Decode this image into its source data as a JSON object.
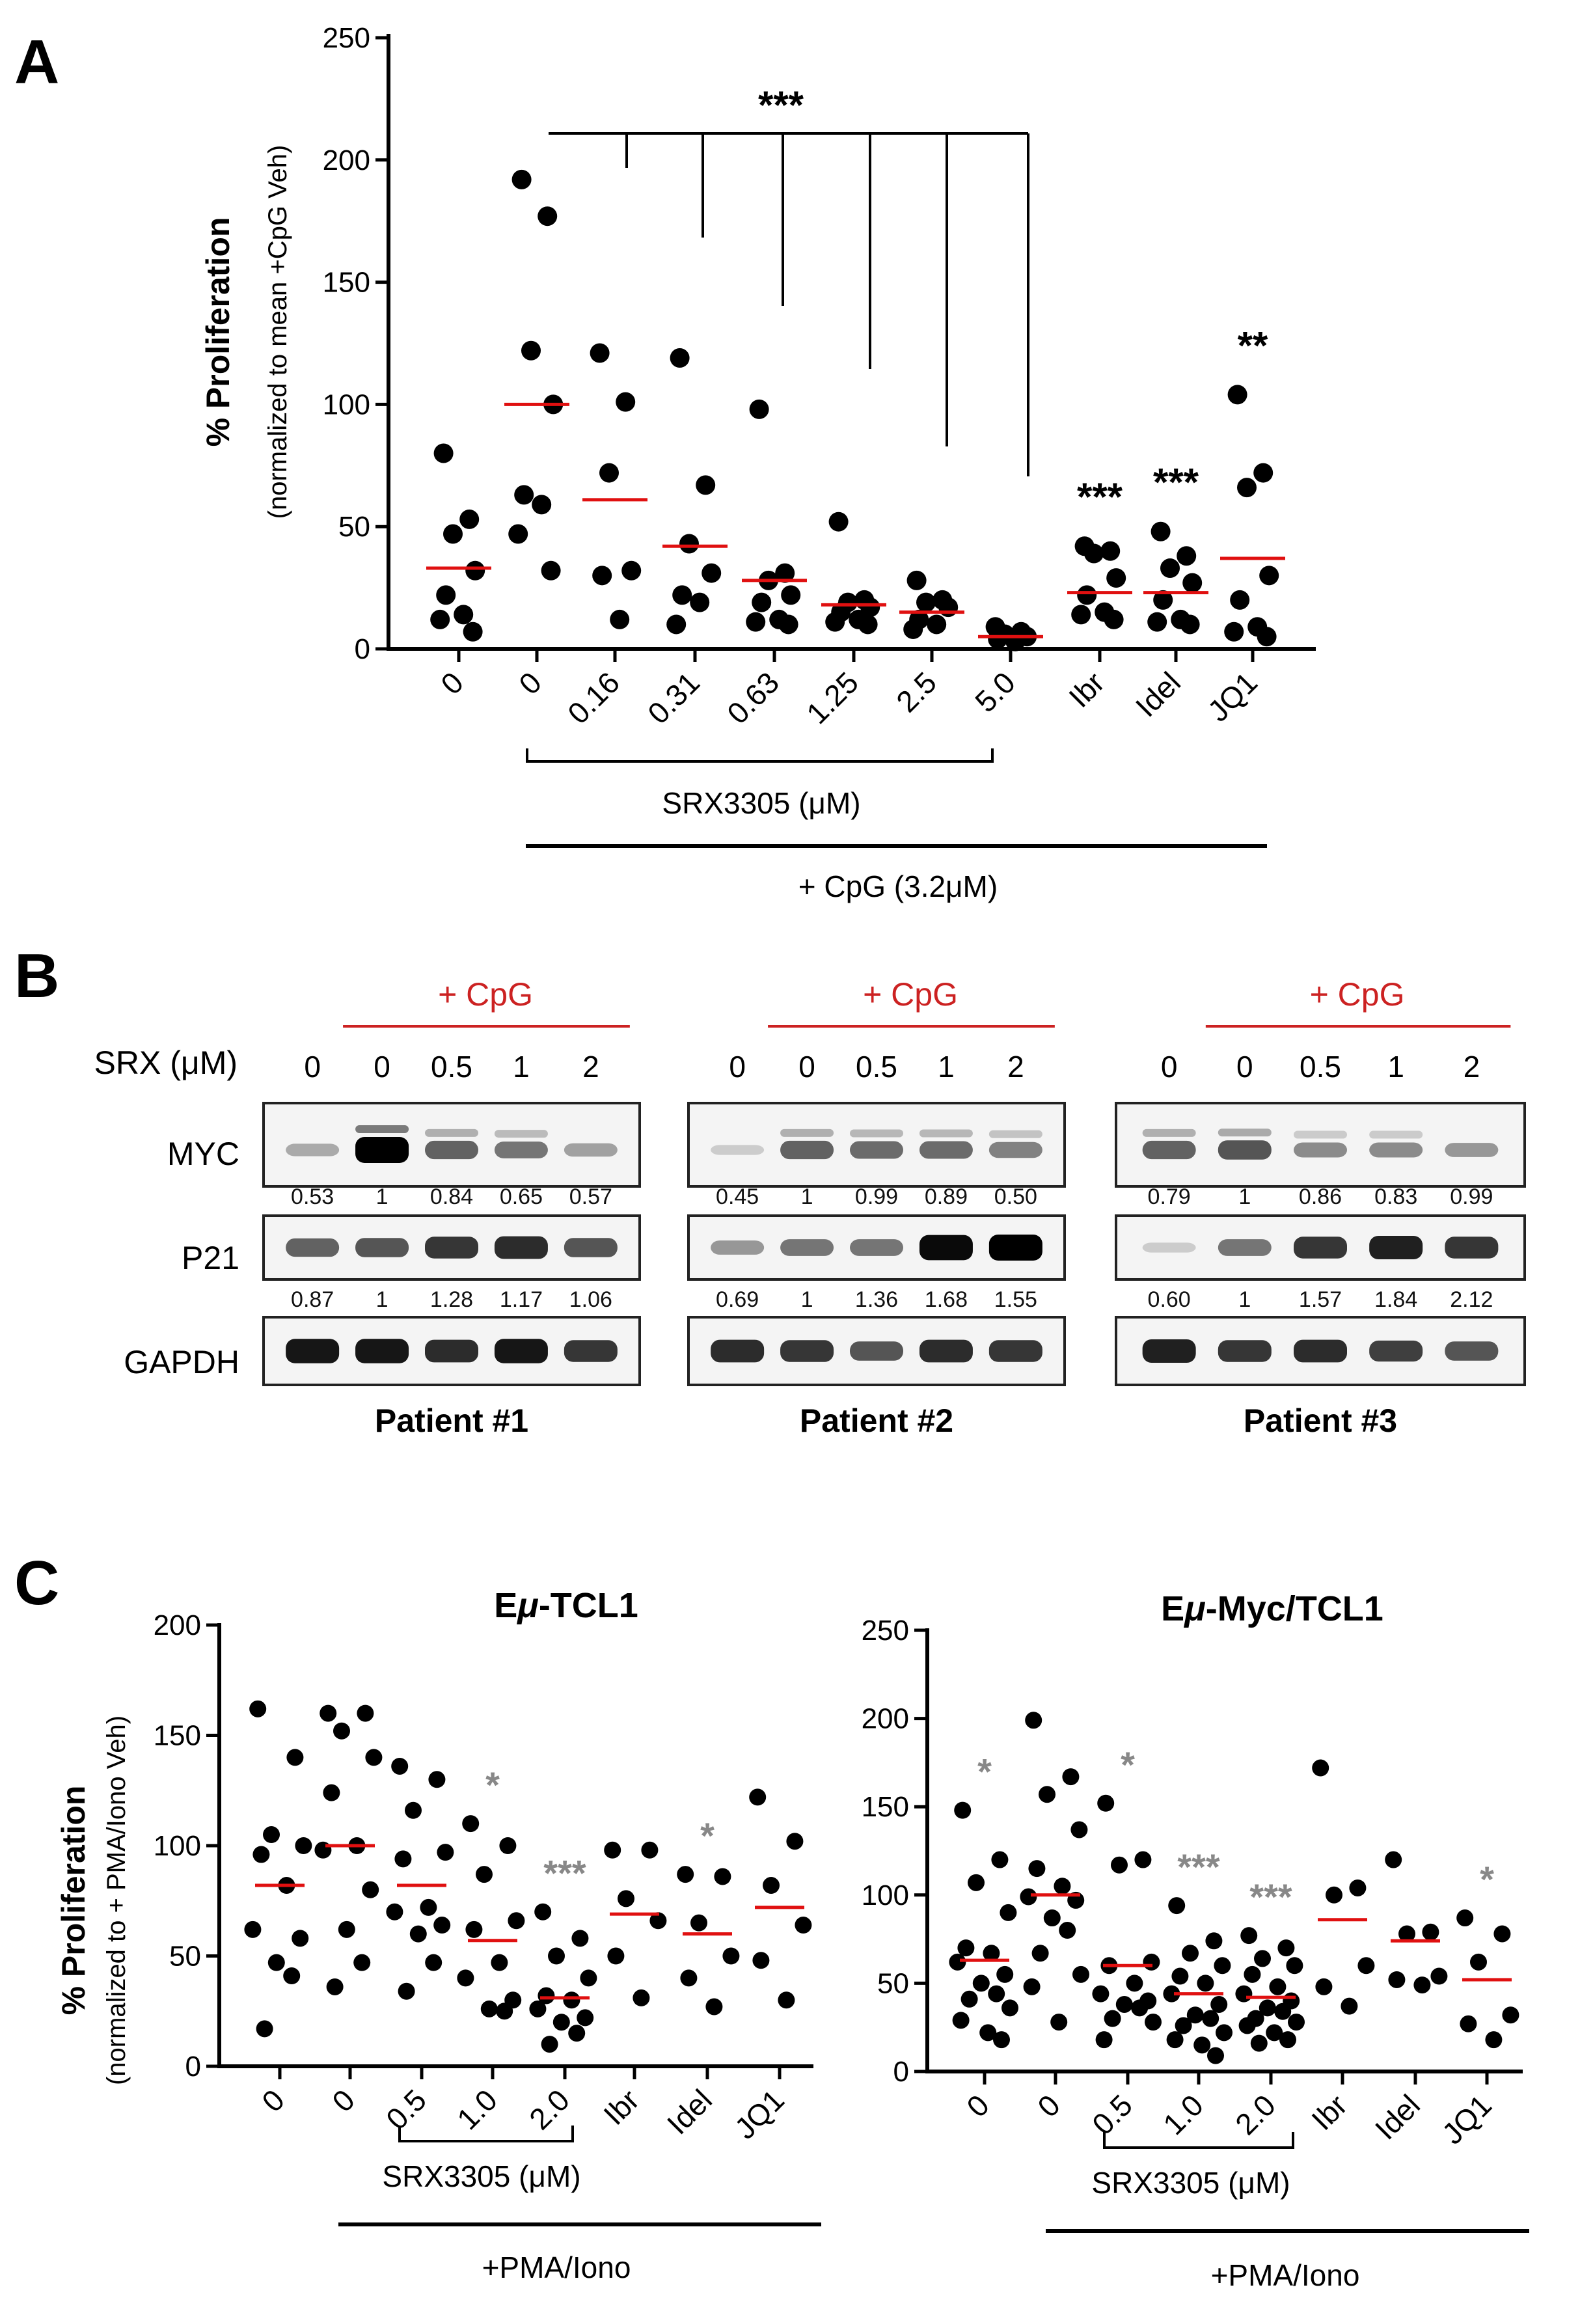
{
  "figure": {
    "panel_a": "A",
    "panel_b": "B",
    "panel_c": "C"
  },
  "panelA": {
    "ylabel_main": "% Proliferation",
    "ylabel_sub": "(normalized to mean +CpG Veh)",
    "sig_bracket": "***",
    "bracket_srx": "SRX3305 (μM)",
    "bracket_cpg": "+ CpG (3.2μM)"
  },
  "panelB": {
    "srx_label": "SRX (μM)",
    "cpg_label": "+ CpG",
    "lane_labels": [
      "0",
      "0",
      "0.5",
      "1",
      "2"
    ],
    "rows": [
      "MYC",
      "P21",
      "GAPDH"
    ],
    "patients": [
      {
        "name": "Patient #1",
        "myc": [
          "0.53",
          "1",
          "0.84",
          "0.65",
          "0.57"
        ],
        "p21": [
          "0.87",
          "1",
          "1.28",
          "1.17",
          "1.06"
        ]
      },
      {
        "name": "Patient #2",
        "myc": [
          "0.45",
          "1",
          "0.99",
          "0.89",
          "0.50"
        ],
        "p21": [
          "0.69",
          "1",
          "1.36",
          "1.68",
          "1.55"
        ]
      },
      {
        "name": "Patient #3",
        "myc": [
          "0.79",
          "1",
          "0.86",
          "0.83",
          "0.99"
        ],
        "p21": [
          "0.60",
          "1",
          "1.57",
          "1.84",
          "2.12"
        ]
      }
    ],
    "myc_intensity": [
      [
        0.2,
        1.0,
        0.55,
        0.45,
        0.25
      ],
      [
        0.05,
        0.55,
        0.5,
        0.5,
        0.4
      ],
      [
        0.55,
        0.6,
        0.35,
        0.35,
        0.3
      ]
    ],
    "p21_intensity": [
      [
        0.55,
        0.6,
        0.75,
        0.8,
        0.6
      ],
      [
        0.3,
        0.45,
        0.45,
        0.95,
        1.0
      ],
      [
        0.05,
        0.45,
        0.75,
        0.85,
        0.75
      ]
    ],
    "gapdh_intensity": [
      [
        0.9,
        0.9,
        0.8,
        0.9,
        0.75
      ],
      [
        0.8,
        0.75,
        0.6,
        0.8,
        0.75
      ],
      [
        0.85,
        0.75,
        0.8,
        0.7,
        0.6
      ]
    ]
  },
  "panelC": {
    "ylabel_main": "% Proliferation",
    "ylabel_sub": "(normalized to + PMA/Iono Veh)",
    "bracket_srx": "SRX3305 (μM)",
    "bracket_pma": "+PMA/Iono",
    "title_left_pre": "E",
    "title_left_mu": "μ",
    "title_left_post": "-TCL1",
    "title_right_pre": "E",
    "title_right_mu": "μ",
    "title_right_post": "-Myc/TCL1"
  },
  "chart_data": [
    {
      "id": "A",
      "type": "scatter",
      "title": "",
      "ylabel": "% Proliferation (normalized to mean +CpG Veh)",
      "ylim": [
        0,
        250
      ],
      "yticks": [
        0,
        50,
        100,
        150,
        200,
        250
      ],
      "categories": [
        "0",
        "0",
        "0.16",
        "0.31",
        "0.63",
        "1.25",
        "2.5",
        "5.0",
        "Ibr",
        "Idel",
        "JQ1"
      ],
      "series": [
        {
          "name": "0",
          "points": [
            80,
            53,
            47,
            32,
            22,
            14,
            12,
            7
          ],
          "mean": 33,
          "sig": ""
        },
        {
          "name": "0",
          "points": [
            192,
            177,
            122,
            100,
            63,
            59,
            47,
            32
          ],
          "mean": 100,
          "sig": ""
        },
        {
          "name": "0.16",
          "points": [
            121,
            101,
            72,
            32,
            30,
            12
          ],
          "mean": 61,
          "sig": ""
        },
        {
          "name": "0.31",
          "points": [
            119,
            67,
            43,
            31,
            22,
            19,
            10
          ],
          "mean": 42,
          "sig": ""
        },
        {
          "name": "0.63",
          "points": [
            98,
            31,
            28,
            22,
            19,
            12,
            11,
            10
          ],
          "mean": 28,
          "sig": ""
        },
        {
          "name": "1.25",
          "points": [
            52,
            20,
            19,
            17,
            15,
            12,
            11,
            10
          ],
          "mean": 18,
          "sig": ""
        },
        {
          "name": "2.5",
          "points": [
            28,
            20,
            19,
            17,
            12,
            10,
            8
          ],
          "mean": 15,
          "sig": ""
        },
        {
          "name": "5.0",
          "points": [
            9,
            7,
            6,
            5,
            4,
            3
          ],
          "mean": 5,
          "sig": ""
        },
        {
          "name": "Ibr",
          "points": [
            42,
            40,
            39,
            29,
            22,
            15,
            14,
            12
          ],
          "mean": 23,
          "sig": "***"
        },
        {
          "name": "Idel",
          "points": [
            48,
            38,
            33,
            27,
            20,
            12,
            11,
            10
          ],
          "mean": 23,
          "sig": "***"
        },
        {
          "name": "JQ1",
          "points": [
            104,
            72,
            66,
            30,
            20,
            9,
            7,
            5
          ],
          "mean": 37,
          "sig": "**"
        }
      ]
    },
    {
      "id": "C-left",
      "type": "scatter",
      "title": "Eμ-TCL1",
      "ylabel": "% Proliferation (normalized to + PMA/Iono Veh)",
      "ylim": [
        0,
        200
      ],
      "yticks": [
        0,
        50,
        100,
        150,
        200
      ],
      "categories": [
        "0",
        "0",
        "0.5",
        "1.0",
        "2.0",
        "Ibr",
        "Idel",
        "JQ1"
      ],
      "series": [
        {
          "name": "0",
          "points": [
            162,
            140,
            105,
            100,
            96,
            82,
            62,
            58,
            47,
            41,
            17
          ],
          "mean": 82,
          "sig": ""
        },
        {
          "name": "0",
          "points": [
            160,
            160,
            152,
            140,
            124,
            100,
            98,
            80,
            62,
            47,
            36
          ],
          "mean": 100,
          "sig": ""
        },
        {
          "name": "0.5",
          "points": [
            136,
            130,
            116,
            97,
            94,
            72,
            70,
            64,
            60,
            47,
            34
          ],
          "mean": 82,
          "sig": ""
        },
        {
          "name": "1.0",
          "points": [
            110,
            100,
            87,
            66,
            62,
            47,
            40,
            30,
            26,
            25
          ],
          "mean": 57,
          "sig": "*"
        },
        {
          "name": "2.0",
          "points": [
            70,
            58,
            50,
            40,
            32,
            30,
            26,
            22,
            20,
            15,
            10
          ],
          "mean": 31,
          "sig": "***"
        },
        {
          "name": "Ibr",
          "points": [
            98,
            98,
            76,
            66,
            50,
            31
          ],
          "mean": 69,
          "sig": ""
        },
        {
          "name": "Idel",
          "points": [
            87,
            86,
            65,
            50,
            40,
            27
          ],
          "mean": 60,
          "sig": "*"
        },
        {
          "name": "JQ1",
          "points": [
            122,
            102,
            82,
            64,
            48,
            30
          ],
          "mean": 72,
          "sig": ""
        }
      ]
    },
    {
      "id": "C-right",
      "type": "scatter",
      "title": "Eμ-Myc/TCL1",
      "ylabel": "",
      "ylim": [
        0,
        250
      ],
      "yticks": [
        0,
        50,
        100,
        150,
        200,
        250
      ],
      "categories": [
        "0",
        "0",
        "0.5",
        "1.0",
        "2.0",
        "Ibr",
        "Idel",
        "JQ1"
      ],
      "series": [
        {
          "name": "0",
          "points": [
            148,
            120,
            107,
            90,
            70,
            67,
            62,
            55,
            50,
            44,
            41,
            36,
            29,
            22,
            18
          ],
          "mean": 63,
          "sig": "*"
        },
        {
          "name": "0",
          "points": [
            199,
            167,
            157,
            137,
            115,
            105,
            99,
            97,
            87,
            80,
            67,
            55,
            48,
            28
          ],
          "mean": 100,
          "sig": ""
        },
        {
          "name": "0.5",
          "points": [
            152,
            120,
            117,
            62,
            60,
            50,
            44,
            40,
            38,
            36,
            30,
            28,
            18
          ],
          "mean": 60,
          "sig": "*"
        },
        {
          "name": "1.0",
          "points": [
            94,
            74,
            67,
            60,
            54,
            50,
            44,
            38,
            32,
            30,
            26,
            22,
            18,
            15,
            9
          ],
          "mean": 44,
          "sig": "***"
        },
        {
          "name": "2.0",
          "points": [
            77,
            70,
            64,
            60,
            55,
            48,
            44,
            40,
            36,
            34,
            30,
            28,
            26,
            22,
            18,
            16
          ],
          "mean": 42,
          "sig": "***"
        },
        {
          "name": "Ibr",
          "points": [
            172,
            104,
            100,
            60,
            48,
            37
          ],
          "mean": 86,
          "sig": ""
        },
        {
          "name": "Idel",
          "points": [
            120,
            79,
            78,
            54,
            52,
            49
          ],
          "mean": 74,
          "sig": ""
        },
        {
          "name": "JQ1",
          "points": [
            87,
            78,
            62,
            32,
            27,
            18
          ],
          "mean": 52,
          "sig": "*"
        }
      ]
    }
  ]
}
